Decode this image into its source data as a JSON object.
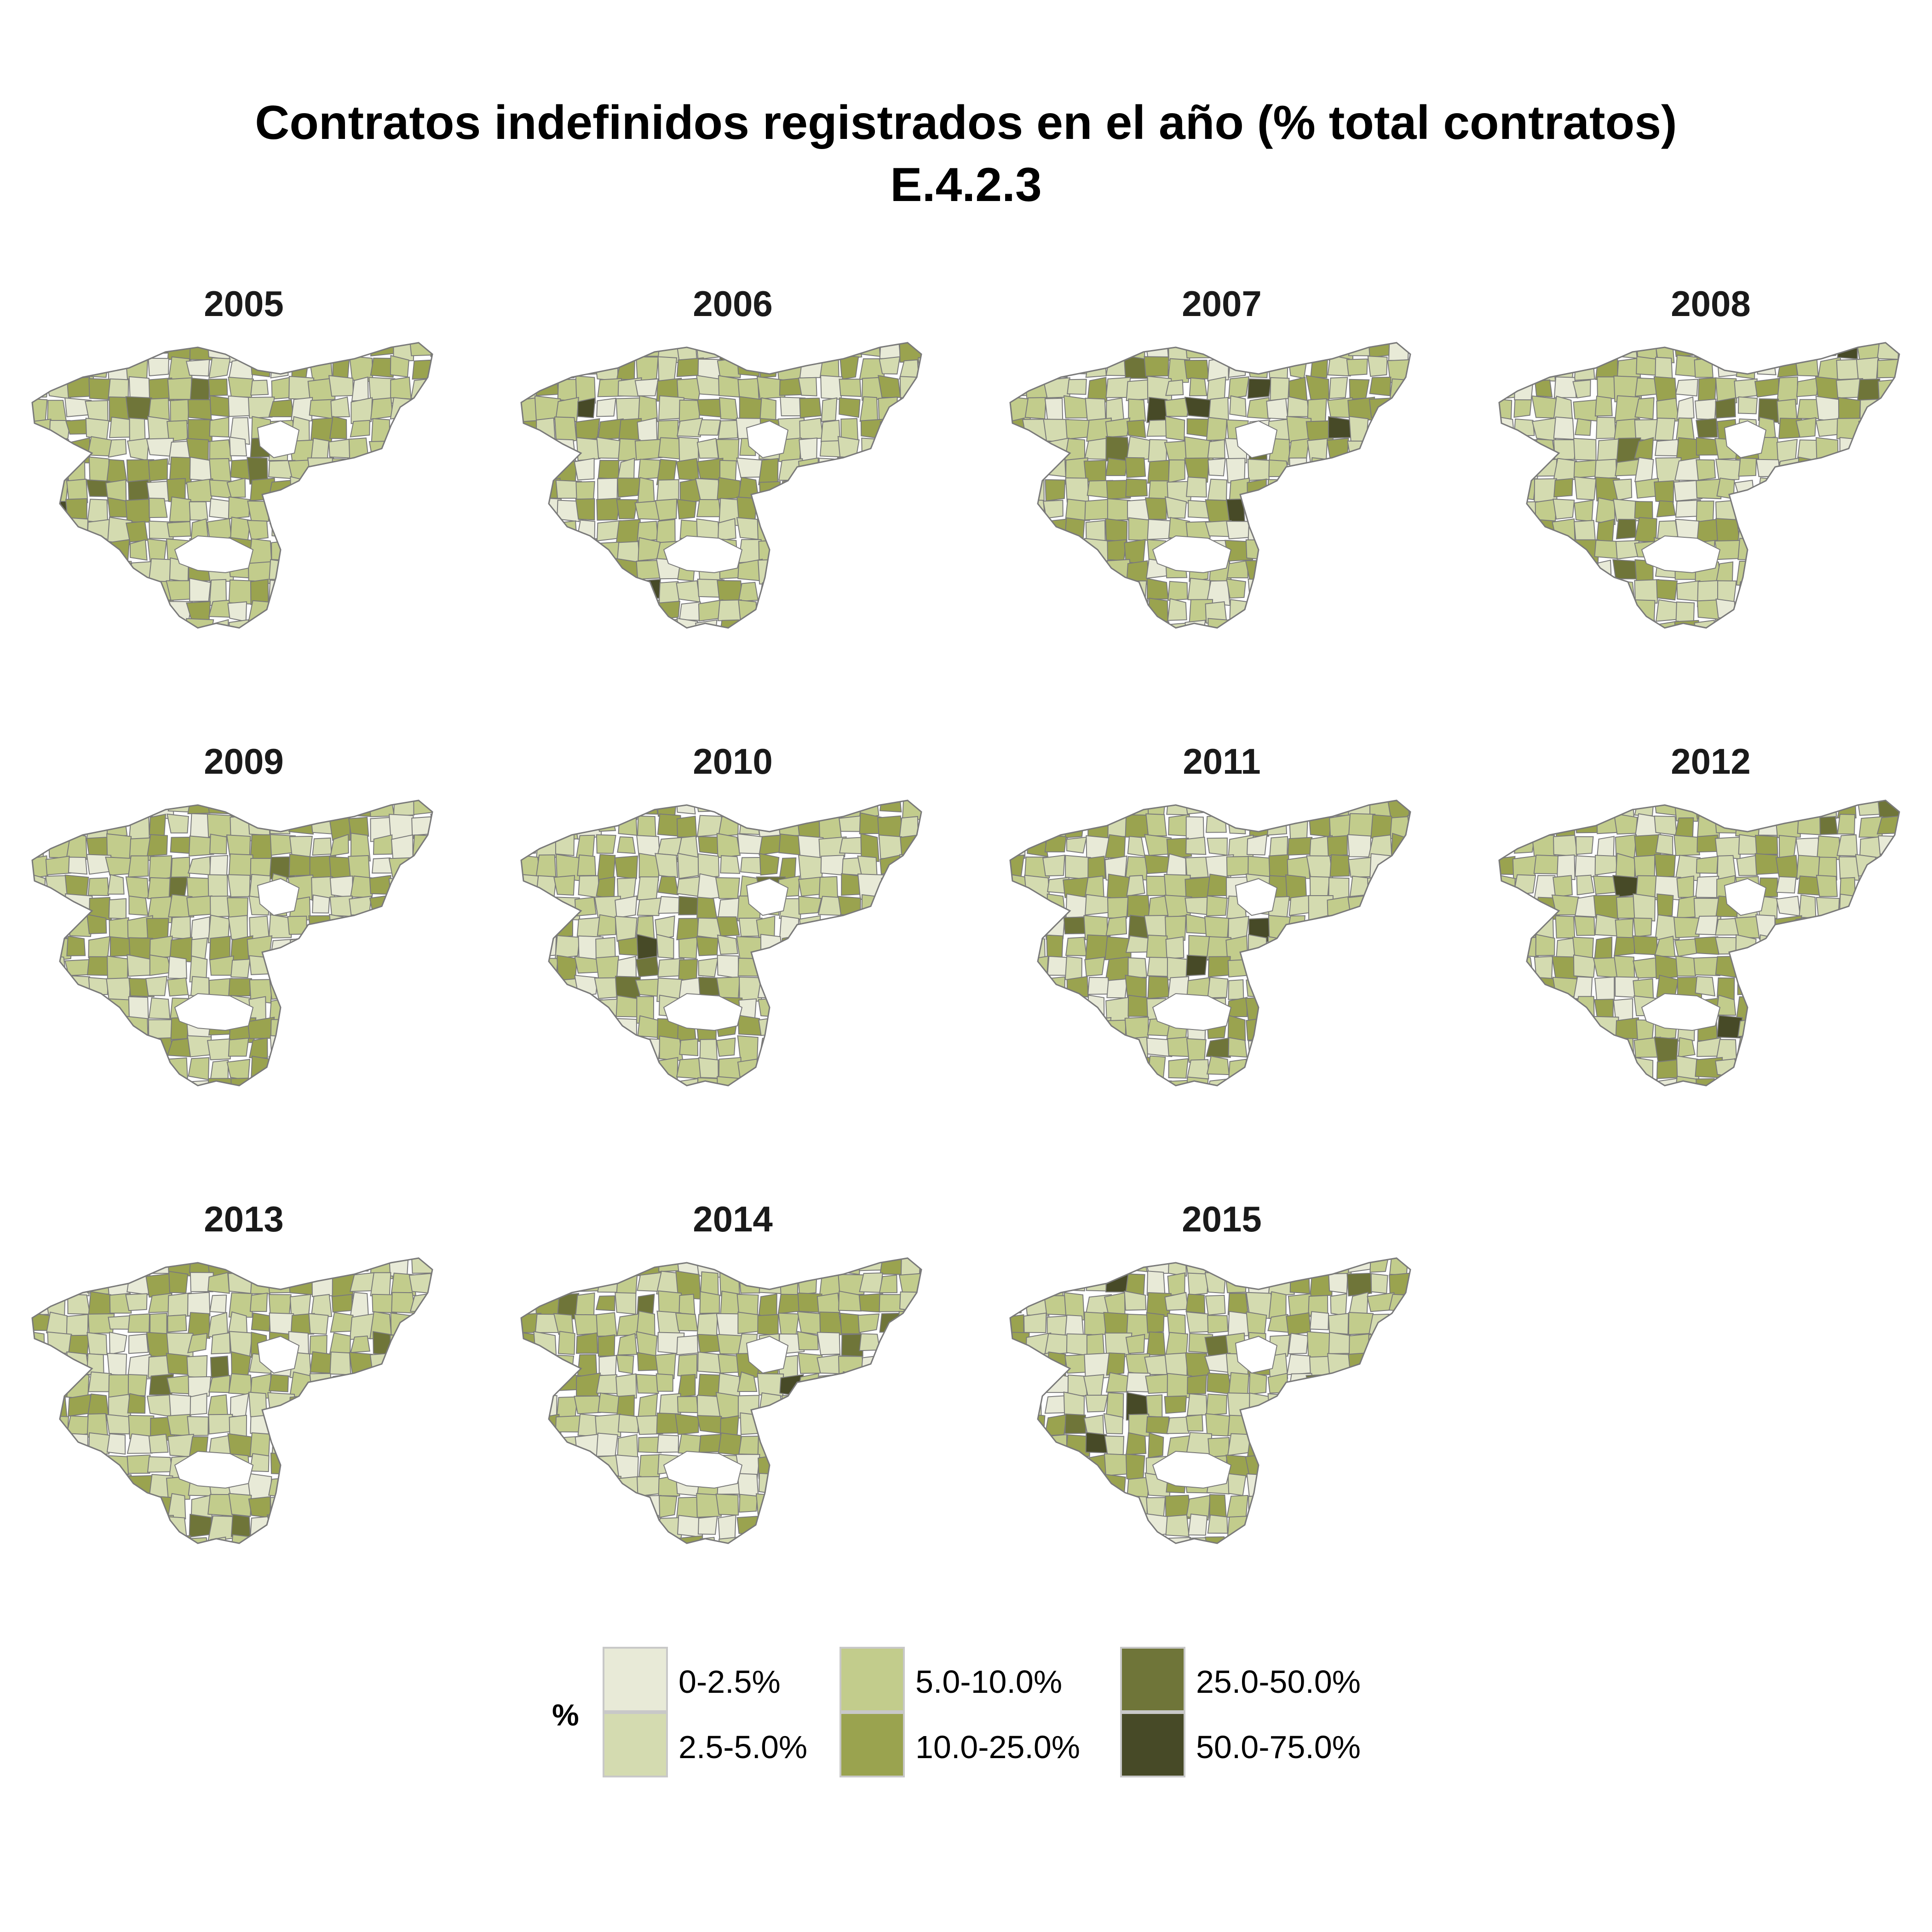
{
  "title": {
    "line1": "Contratos indefinidos registrados en el año (% total contratos)",
    "line2": "E.4.2.3"
  },
  "legend": {
    "title": "%",
    "items": [
      {
        "label": "0-2.5%",
        "color": "#e8ead7"
      },
      {
        "label": "2.5-5.0%",
        "color": "#d4dbb0"
      },
      {
        "label": "5.0-10.0%",
        "color": "#c2cc8c"
      },
      {
        "label": "10.0-25.0%",
        "color": "#9aa34f"
      },
      {
        "label": "25.0-50.0%",
        "color": "#6f7539"
      },
      {
        "label": "50.0-75.0%",
        "color": "#474a27"
      }
    ]
  },
  "panels": [
    {
      "year": "2005"
    },
    {
      "year": "2006"
    },
    {
      "year": "2007"
    },
    {
      "year": "2008"
    },
    {
      "year": "2009"
    },
    {
      "year": "2010"
    },
    {
      "year": "2011"
    },
    {
      "year": "2012"
    },
    {
      "year": "2013"
    },
    {
      "year": "2014"
    },
    {
      "year": "2015"
    }
  ],
  "colors": {
    "border": "#7a7a7a",
    "no_data": "#ffffff"
  }
}
